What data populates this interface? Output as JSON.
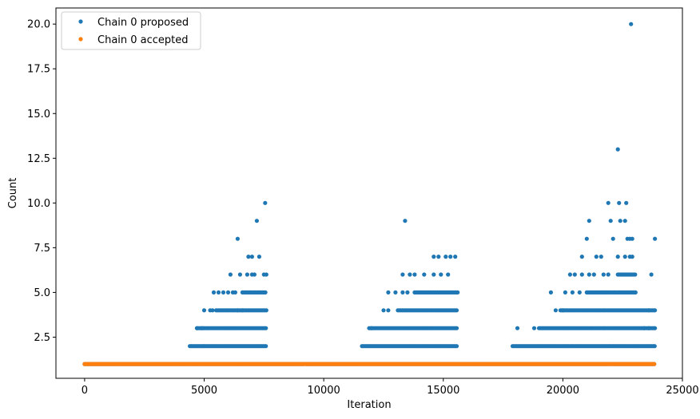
{
  "chart_data": {
    "type": "scatter",
    "title": "",
    "xlabel": "Iteration",
    "ylabel": "Count",
    "xlim": [
      -1200,
      25000
    ],
    "ylim": [
      0.2,
      20.9
    ],
    "xticks": [
      {
        "value": 0,
        "label": "0"
      },
      {
        "value": 5000,
        "label": "5000"
      },
      {
        "value": 10000,
        "label": "10000"
      },
      {
        "value": 15000,
        "label": "15000"
      },
      {
        "value": 20000,
        "label": "20000"
      },
      {
        "value": 25000,
        "label": "25000"
      }
    ],
    "yticks": [
      {
        "value": 2.5,
        "label": "2.5"
      },
      {
        "value": 5.0,
        "label": "5.0"
      },
      {
        "value": 7.5,
        "label": "7.5"
      },
      {
        "value": 10.0,
        "label": "10.0"
      },
      {
        "value": 12.5,
        "label": "12.5"
      },
      {
        "value": 15.0,
        "label": "15.0"
      },
      {
        "value": 17.5,
        "label": "17.5"
      },
      {
        "value": 20.0,
        "label": "20.0"
      }
    ],
    "grid": false,
    "legend_position": "top-left",
    "series": [
      {
        "name": "Chain 0 proposed",
        "color": "#1f77b4",
        "bands": [
          {
            "y": 1,
            "x": [
              0,
              23850
            ]
          },
          {
            "y": 2,
            "x": [
              4400,
              7600
            ]
          },
          {
            "y": 2,
            "x": [
              11600,
              15600
            ]
          },
          {
            "y": 2,
            "x": [
              17900,
              23850
            ]
          },
          {
            "y": 3,
            "x": [
              4700,
              7600
            ]
          },
          {
            "y": 3,
            "x": [
              11900,
              15600
            ]
          },
          {
            "y": 3,
            "x": [
              19000,
              23850
            ]
          },
          {
            "y": 4,
            "x": [
              5500,
              7600
            ]
          },
          {
            "y": 4,
            "x": [
              13100,
              15600
            ]
          },
          {
            "y": 4,
            "x": [
              19900,
              23850
            ]
          },
          {
            "y": 5,
            "x": [
              6600,
              7600
            ]
          },
          {
            "y": 5,
            "x": [
              13800,
              15600
            ]
          },
          {
            "y": 5,
            "x": [
              21000,
              23050
            ]
          },
          {
            "y": 6,
            "x": [
              22300,
              23050
            ]
          }
        ],
        "points": [
          [
            4900,
            3
          ],
          [
            4700,
            3
          ],
          [
            5000,
            4
          ],
          [
            5250,
            4
          ],
          [
            5350,
            4
          ],
          [
            5400,
            5
          ],
          [
            5600,
            5
          ],
          [
            5800,
            5
          ],
          [
            6000,
            5
          ],
          [
            6200,
            5
          ],
          [
            6300,
            5
          ],
          [
            6400,
            4
          ],
          [
            6600,
            4
          ],
          [
            6100,
            6
          ],
          [
            6500,
            6
          ],
          [
            6800,
            6
          ],
          [
            7000,
            6
          ],
          [
            7100,
            6
          ],
          [
            7500,
            6
          ],
          [
            7600,
            6
          ],
          [
            6850,
            7
          ],
          [
            7000,
            7
          ],
          [
            7300,
            7
          ],
          [
            6400,
            8
          ],
          [
            7200,
            9
          ],
          [
            7550,
            10
          ],
          [
            12000,
            3
          ],
          [
            12500,
            4
          ],
          [
            12700,
            4
          ],
          [
            12700,
            5
          ],
          [
            13000,
            5
          ],
          [
            13300,
            5
          ],
          [
            13500,
            5
          ],
          [
            13300,
            6
          ],
          [
            13600,
            6
          ],
          [
            13800,
            6
          ],
          [
            14200,
            6
          ],
          [
            14600,
            6
          ],
          [
            14900,
            6
          ],
          [
            15200,
            6
          ],
          [
            14600,
            7
          ],
          [
            14800,
            7
          ],
          [
            15100,
            7
          ],
          [
            15300,
            7
          ],
          [
            15500,
            7
          ],
          [
            13400,
            9
          ],
          [
            18100,
            3
          ],
          [
            18800,
            3
          ],
          [
            19500,
            5
          ],
          [
            19700,
            4
          ],
          [
            20000,
            4
          ],
          [
            20100,
            5
          ],
          [
            20400,
            5
          ],
          [
            20700,
            5
          ],
          [
            20300,
            6
          ],
          [
            20500,
            6
          ],
          [
            20800,
            6
          ],
          [
            21100,
            6
          ],
          [
            21300,
            6
          ],
          [
            21700,
            6
          ],
          [
            21900,
            6
          ],
          [
            20800,
            7
          ],
          [
            21400,
            7
          ],
          [
            21600,
            7
          ],
          [
            22300,
            7
          ],
          [
            22600,
            7
          ],
          [
            22800,
            7
          ],
          [
            22900,
            7
          ],
          [
            21000,
            8
          ],
          [
            22100,
            8
          ],
          [
            22700,
            8
          ],
          [
            22800,
            8
          ],
          [
            22900,
            8
          ],
          [
            23850,
            8
          ],
          [
            21100,
            9
          ],
          [
            22000,
            9
          ],
          [
            22400,
            9
          ],
          [
            22600,
            9
          ],
          [
            21900,
            10
          ],
          [
            22350,
            10
          ],
          [
            22650,
            10
          ],
          [
            22300,
            13
          ],
          [
            22850,
            20
          ],
          [
            23700,
            6
          ],
          [
            23600,
            4
          ],
          [
            23850,
            4
          ],
          [
            23400,
            3
          ],
          [
            23600,
            3
          ],
          [
            23850,
            3
          ]
        ]
      },
      {
        "name": "Chain 0 accepted",
        "color": "#ff7f0e",
        "bands": [
          {
            "y": 1,
            "x": [
              0,
              23850
            ]
          }
        ],
        "points": []
      }
    ]
  }
}
